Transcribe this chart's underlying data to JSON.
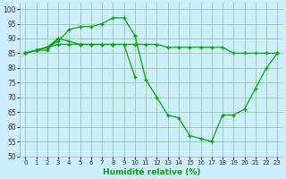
{
  "xlabel": "Humidité relative (%)",
  "bg_color": "#cceeff",
  "grid_color": "#99cc99",
  "line_color": "#00aa00",
  "xlim": [
    -0.5,
    23.5
  ],
  "ylim": [
    50,
    102
  ],
  "yticks": [
    50,
    55,
    60,
    65,
    70,
    75,
    80,
    85,
    90,
    95,
    100
  ],
  "xticks": [
    0,
    1,
    2,
    3,
    4,
    5,
    6,
    7,
    8,
    9,
    10,
    11,
    12,
    13,
    14,
    15,
    16,
    17,
    18,
    19,
    20,
    21,
    22,
    23
  ],
  "series": [
    {
      "x": [
        0,
        1,
        2,
        3,
        4,
        5,
        6,
        7,
        8,
        9,
        10
      ],
      "y": [
        85,
        86,
        87,
        89,
        93,
        94,
        94,
        95,
        97,
        97,
        91
      ]
    },
    {
      "x": [
        10,
        11,
        12,
        13,
        14,
        15,
        16,
        17,
        18,
        19,
        20,
        21,
        22,
        23
      ],
      "y": [
        91,
        76,
        70,
        64,
        63,
        57,
        56,
        55,
        64,
        64,
        66,
        73,
        80,
        85
      ]
    },
    {
      "x": [
        0,
        1,
        2,
        3,
        4,
        5,
        6,
        7,
        8,
        9,
        10,
        11,
        12,
        13,
        14,
        15,
        16,
        17,
        18,
        19,
        20,
        21,
        22,
        23
      ],
      "y": [
        85,
        86,
        87,
        88,
        88,
        88,
        88,
        88,
        88,
        88,
        88,
        88,
        88,
        87,
        87,
        87,
        87,
        87,
        87,
        85,
        85,
        85,
        85,
        85
      ]
    },
    {
      "x": [
        0,
        1,
        2,
        3,
        4,
        5,
        6,
        7,
        8,
        9,
        10
      ],
      "y": [
        85,
        86,
        86,
        90,
        89,
        88,
        88,
        88,
        88,
        88,
        77
      ]
    },
    {
      "x": [
        0,
        1,
        2,
        3
      ],
      "y": [
        85,
        86,
        87,
        90
      ]
    }
  ]
}
